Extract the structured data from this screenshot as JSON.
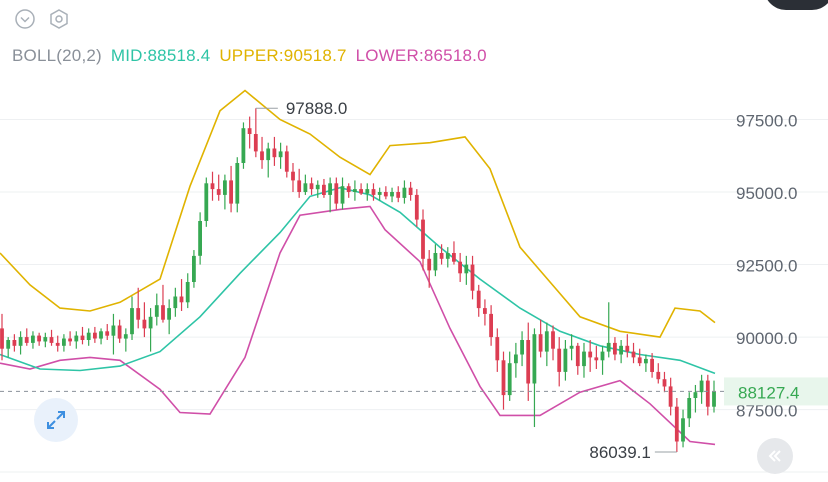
{
  "toolbar": {
    "icons": [
      "chevron-down-circle-icon",
      "settings-hexagon-icon"
    ]
  },
  "indicator": {
    "name": "BOLL(20,2)",
    "mid_label": "MID:88518.4",
    "upper_label": "UPPER:90518.7",
    "lower_label": "LOWER:86518.0",
    "colors": {
      "name": "#8a9099",
      "mid": "#2ec4a6",
      "upper": "#e0b300",
      "lower": "#d04fa8"
    }
  },
  "chart_data": {
    "type": "candlestick",
    "y_ticks": [
      "97500.0",
      "95000.0",
      "92500.0",
      "90000.0",
      "87500.0"
    ],
    "y_tick_values": [
      97500,
      95000,
      92500,
      90000,
      87500
    ],
    "y_range": [
      85350,
      100240
    ],
    "current_price": {
      "label": "88127.4",
      "value": 88127.4
    },
    "high_marker": {
      "label": "97888.0",
      "value": 97888.0
    },
    "low_marker": {
      "label": "86039.1",
      "value": 86039.1
    },
    "candles": [
      [
        90300,
        90800,
        89200,
        89600
      ],
      [
        89600,
        90000,
        89300,
        89900
      ],
      [
        89900,
        90100,
        89500,
        89700
      ],
      [
        89700,
        90200,
        89400,
        90000
      ],
      [
        90000,
        90300,
        89700,
        89800
      ],
      [
        89800,
        90200,
        89600,
        90050
      ],
      [
        90050,
        90150,
        89700,
        89850
      ],
      [
        89850,
        90150,
        89650,
        90000
      ],
      [
        90000,
        90250,
        89700,
        89800
      ],
      [
        89800,
        90050,
        89500,
        89700
      ],
      [
        89700,
        90100,
        89500,
        89950
      ],
      [
        89950,
        90200,
        89700,
        89850
      ],
      [
        89850,
        90200,
        89600,
        90050
      ],
      [
        90050,
        90350,
        89750,
        89900
      ],
      [
        89900,
        90300,
        89700,
        90150
      ],
      [
        90150,
        90350,
        89800,
        89950
      ],
      [
        89950,
        90300,
        89750,
        90200
      ],
      [
        90200,
        90450,
        89900,
        90050
      ],
      [
        90050,
        90800,
        89400,
        90400
      ],
      [
        90400,
        90600,
        89800,
        89950
      ],
      [
        89950,
        90300,
        89500,
        90100
      ],
      [
        90100,
        91400,
        89900,
        91000
      ],
      [
        91000,
        91700,
        90300,
        90600
      ],
      [
        90600,
        91200,
        90000,
        90300
      ],
      [
        90300,
        91000,
        89500,
        90700
      ],
      [
        90700,
        91500,
        90400,
        91100
      ],
      [
        91100,
        91800,
        90500,
        90600
      ],
      [
        90600,
        91300,
        90100,
        91000
      ],
      [
        91000,
        91700,
        90700,
        91400
      ],
      [
        91400,
        92000,
        90900,
        91200
      ],
      [
        91200,
        92200,
        91000,
        91900
      ],
      [
        91900,
        93000,
        91700,
        92800
      ],
      [
        92800,
        94300,
        92500,
        94000
      ],
      [
        94000,
        95500,
        93800,
        95300
      ],
      [
        95300,
        95700,
        94700,
        95100
      ],
      [
        95100,
        95600,
        94700,
        94900
      ],
      [
        94900,
        95600,
        94400,
        95400
      ],
      [
        95400,
        95900,
        94300,
        94600
      ],
      [
        94600,
        96200,
        94300,
        96000
      ],
      [
        96000,
        97400,
        95800,
        97200
      ],
      [
        97200,
        97600,
        96500,
        97000
      ],
      [
        97000,
        97888,
        96200,
        96400
      ],
      [
        96400,
        96900,
        95800,
        96100
      ],
      [
        96100,
        96700,
        95500,
        96500
      ],
      [
        96500,
        96900,
        95900,
        96200
      ],
      [
        96200,
        96700,
        95800,
        96400
      ],
      [
        96400,
        96600,
        95500,
        95700
      ],
      [
        95700,
        96000,
        95000,
        95400
      ],
      [
        95400,
        95800,
        94800,
        95000
      ],
      [
        95000,
        95600,
        94900,
        95300
      ],
      [
        95300,
        95500,
        94900,
        95100
      ],
      [
        95100,
        95400,
        94800,
        95250
      ],
      [
        95250,
        95450,
        94800,
        94900
      ],
      [
        94900,
        95500,
        94300,
        95300
      ],
      [
        95300,
        95500,
        94400,
        94600
      ],
      [
        94600,
        95500,
        94400,
        95200
      ],
      [
        95200,
        95300,
        94800,
        95000
      ],
      [
        95000,
        95400,
        94700,
        95100
      ],
      [
        95100,
        95300,
        94900,
        94950
      ],
      [
        94950,
        95300,
        94700,
        95100
      ],
      [
        95100,
        95300,
        94700,
        94900
      ],
      [
        94900,
        95150,
        94700,
        95000
      ],
      [
        95000,
        95200,
        94750,
        94850
      ],
      [
        94850,
        95150,
        94650,
        95000
      ],
      [
        95000,
        95200,
        94650,
        94800
      ],
      [
        94800,
        95400,
        94600,
        95150
      ],
      [
        95150,
        95350,
        94700,
        94900
      ],
      [
        94900,
        95100,
        93800,
        94050
      ],
      [
        94050,
        94400,
        92300,
        92700
      ],
      [
        92700,
        93000,
        91700,
        92300
      ],
      [
        92300,
        93200,
        92100,
        92900
      ],
      [
        92900,
        93200,
        92500,
        92700
      ],
      [
        92700,
        93100,
        92400,
        92900
      ],
      [
        92900,
        93300,
        92500,
        92600
      ],
      [
        92600,
        92900,
        91900,
        92200
      ],
      [
        92200,
        92800,
        91800,
        92500
      ],
      [
        92500,
        92800,
        91300,
        91600
      ],
      [
        91600,
        91800,
        90700,
        91000
      ],
      [
        91000,
        91300,
        90400,
        90800
      ],
      [
        90800,
        91100,
        89700,
        90000
      ],
      [
        90000,
        90300,
        88800,
        89200
      ],
      [
        89200,
        89500,
        87500,
        88000
      ],
      [
        88000,
        89500,
        87800,
        89100
      ],
      [
        89100,
        89800,
        88600,
        89400
      ],
      [
        89400,
        90200,
        89000,
        89900
      ],
      [
        89900,
        90500,
        87800,
        88400
      ],
      [
        88400,
        90300,
        86900,
        90100
      ],
      [
        90100,
        90600,
        89300,
        89500
      ],
      [
        89500,
        90500,
        89000,
        90200
      ],
      [
        90200,
        90400,
        89200,
        89600
      ],
      [
        89600,
        90000,
        88300,
        88800
      ],
      [
        88800,
        89900,
        88500,
        89600
      ],
      [
        89600,
        90100,
        89200,
        89700
      ],
      [
        89700,
        89800,
        88700,
        89000
      ],
      [
        89000,
        89800,
        88600,
        89500
      ],
      [
        89500,
        89900,
        88800,
        89300
      ],
      [
        89300,
        89700,
        88900,
        89200
      ],
      [
        89200,
        89700,
        88700,
        89500
      ],
      [
        89500,
        91200,
        89300,
        89800
      ],
      [
        89800,
        90000,
        89200,
        89400
      ],
      [
        89400,
        89900,
        89100,
        89700
      ],
      [
        89700,
        90100,
        89300,
        89500
      ],
      [
        89500,
        89800,
        89100,
        89300
      ],
      [
        89300,
        89600,
        89000,
        89100
      ],
      [
        89100,
        89400,
        88800,
        89250
      ],
      [
        89250,
        89450,
        88600,
        88800
      ],
      [
        88800,
        89100,
        88400,
        88550
      ],
      [
        88550,
        88800,
        88100,
        88300
      ],
      [
        88300,
        88600,
        87300,
        87600
      ],
      [
        87600,
        87900,
        86039.1,
        86400
      ],
      [
        86400,
        87500,
        86200,
        87200
      ],
      [
        87200,
        88100,
        86900,
        87900
      ],
      [
        87900,
        88350,
        87400,
        88100
      ],
      [
        88100,
        88700,
        87700,
        88500
      ],
      [
        88500,
        88700,
        87300,
        87600
      ],
      [
        87600,
        88500,
        87400,
        88127.4
      ]
    ],
    "mid_band": [
      [
        0,
        89400
      ],
      [
        40,
        88900
      ],
      [
        80,
        88850
      ],
      [
        120,
        89000
      ],
      [
        160,
        89500
      ],
      [
        200,
        90700
      ],
      [
        240,
        92200
      ],
      [
        280,
        93600
      ],
      [
        310,
        94850
      ],
      [
        340,
        95150
      ],
      [
        370,
        94900
      ],
      [
        400,
        94300
      ],
      [
        440,
        93100
      ],
      [
        480,
        92000
      ],
      [
        520,
        91000
      ],
      [
        560,
        90200
      ],
      [
        600,
        89700
      ],
      [
        640,
        89400
      ],
      [
        680,
        89200
      ],
      [
        715,
        88750
      ]
    ],
    "upper_band": [
      [
        0,
        92900
      ],
      [
        30,
        91800
      ],
      [
        60,
        91000
      ],
      [
        90,
        90900
      ],
      [
        120,
        91200
      ],
      [
        160,
        92000
      ],
      [
        190,
        95200
      ],
      [
        220,
        97800
      ],
      [
        245,
        98500
      ],
      [
        280,
        97500
      ],
      [
        310,
        97000
      ],
      [
        340,
        96200
      ],
      [
        370,
        95600
      ],
      [
        390,
        96600
      ],
      [
        430,
        96700
      ],
      [
        465,
        96900
      ],
      [
        490,
        95800
      ],
      [
        520,
        93100
      ],
      [
        550,
        91900
      ],
      [
        580,
        90700
      ],
      [
        620,
        90200
      ],
      [
        660,
        90000
      ],
      [
        675,
        91000
      ],
      [
        700,
        90900
      ],
      [
        715,
        90500
      ]
    ],
    "lower_band": [
      [
        0,
        89100
      ],
      [
        30,
        88900
      ],
      [
        60,
        89200
      ],
      [
        90,
        89300
      ],
      [
        120,
        89200
      ],
      [
        160,
        88200
      ],
      [
        180,
        87400
      ],
      [
        210,
        87350
      ],
      [
        245,
        89300
      ],
      [
        280,
        92900
      ],
      [
        300,
        94200
      ],
      [
        340,
        94400
      ],
      [
        370,
        94500
      ],
      [
        385,
        93700
      ],
      [
        420,
        92600
      ],
      [
        450,
        90300
      ],
      [
        480,
        88300
      ],
      [
        500,
        87300
      ],
      [
        540,
        87300
      ],
      [
        580,
        88100
      ],
      [
        620,
        88500
      ],
      [
        650,
        87700
      ],
      [
        690,
        86400
      ],
      [
        715,
        86300
      ]
    ]
  }
}
